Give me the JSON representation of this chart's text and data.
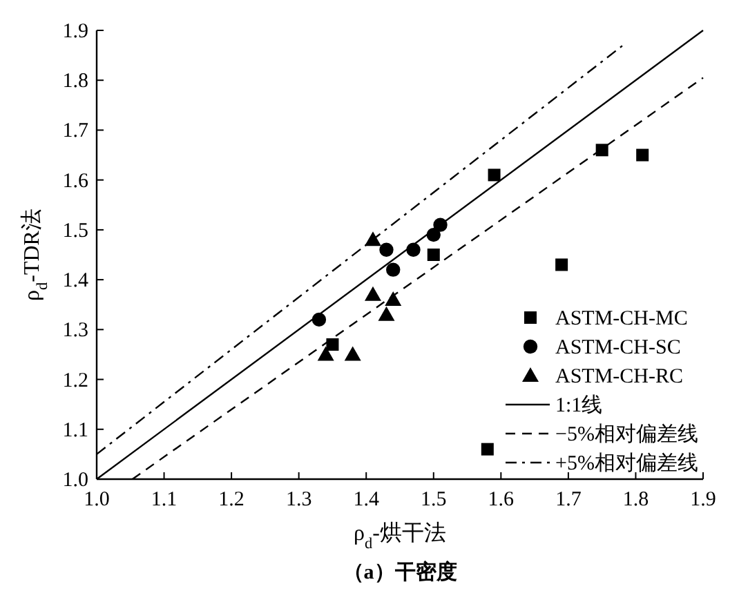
{
  "chart_data": {
    "type": "scatter",
    "xlabel": "ρ$_{d}$-烘干法",
    "ylabel": "ρ$_{d}$-TDR法",
    "annotations": [
      "（a）干密度"
    ],
    "xlim": [
      1.0,
      1.9
    ],
    "ylim": [
      1.0,
      1.9
    ],
    "xticks": [
      {
        "value": 1.0,
        "label": "1.0"
      },
      1.1,
      1.2,
      1.3,
      1.4,
      1.5,
      1.6,
      1.7,
      1.8,
      1.9
    ],
    "yticks": [
      {
        "value": 1.0,
        "label": "1.0"
      },
      1.1,
      1.2,
      1.3,
      1.4,
      1.5,
      1.6,
      1.7,
      1.8,
      1.9
    ],
    "grid": false,
    "legend": "right",
    "series": [
      {
        "name": "ASTM-CH-MC",
        "marker": "square",
        "color": "#000000",
        "x": [
          1.59,
          1.75,
          1.81,
          1.5,
          1.69,
          1.35,
          1.58
        ],
        "values": [
          1.61,
          1.66,
          1.65,
          1.45,
          1.43,
          1.27,
          1.06
        ]
      },
      {
        "name": "ASTM-CH-SC",
        "marker": "circle",
        "color": "#000000",
        "x": [
          1.33,
          1.43,
          1.44,
          1.47,
          1.5,
          1.51
        ],
        "values": [
          1.32,
          1.46,
          1.42,
          1.46,
          1.49,
          1.51
        ]
      },
      {
        "name": "ASTM-CH-RC",
        "marker": "triangle",
        "color": "#000000",
        "x": [
          1.41,
          1.41,
          1.44,
          1.43,
          1.34,
          1.38
        ],
        "values": [
          1.48,
          1.37,
          1.36,
          1.33,
          1.25,
          1.25
        ]
      },
      {
        "name": "1:1线",
        "type": "line",
        "line_style": "solid",
        "color": "#000000",
        "x": [
          1.0,
          1.9
        ],
        "values": [
          1.0,
          1.9
        ]
      },
      {
        "name": "−5%相对偏差线",
        "type": "line",
        "line_style": "dashed",
        "color": "#000000",
        "x": [
          1.053,
          1.9
        ],
        "values": [
          1.0,
          1.805
        ]
      },
      {
        "name": "+5%相对偏差线",
        "type": "line",
        "line_style": "dashdot",
        "color": "#000000",
        "x": [
          1.0,
          1.78
        ],
        "values": [
          1.05,
          1.869
        ]
      }
    ]
  }
}
